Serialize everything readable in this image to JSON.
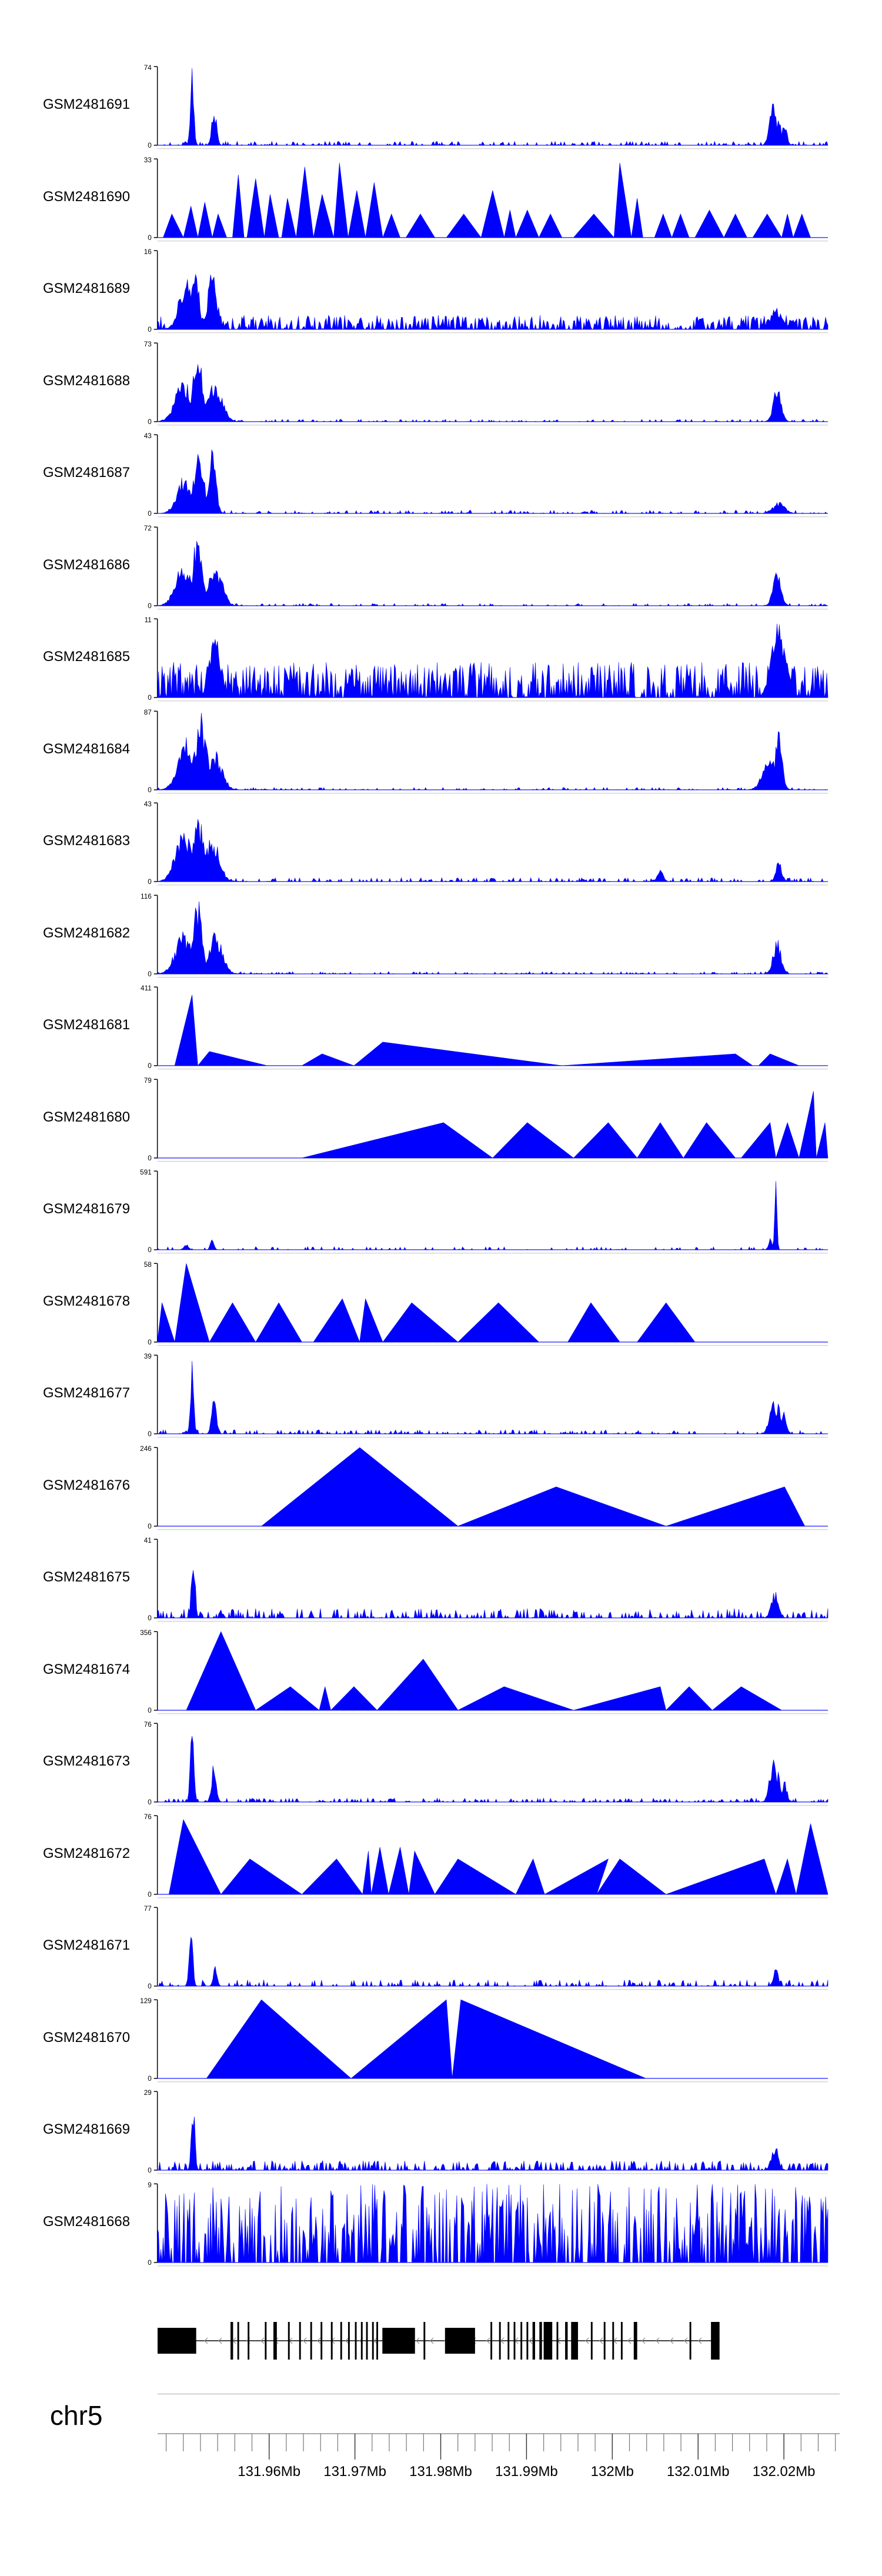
{
  "region": {
    "chromosome": "chr5",
    "start_mb": 131.947,
    "end_mb": 132.0265
  },
  "colors": {
    "signal": "#0000ff",
    "gene": "#000000",
    "axis": "#000000"
  },
  "tracks": [
    {
      "name": "GSM2481691",
      "ymax_label": "74",
      "profile": "spiky_peaks_low"
    },
    {
      "name": "GSM2481690",
      "ymax_label": "33",
      "profile": "triangles_sparse"
    },
    {
      "name": "GSM2481689",
      "ymax_label": "16",
      "profile": "dense_noise_peaks"
    },
    {
      "name": "GSM2481688",
      "ymax_label": "73",
      "profile": "broad_peaks"
    },
    {
      "name": "GSM2481687",
      "ymax_label": "43",
      "profile": "broad_peaks_small_right"
    },
    {
      "name": "GSM2481686",
      "ymax_label": "72",
      "profile": "broad_peaks"
    },
    {
      "name": "GSM2481685",
      "ymax_label": "11",
      "profile": "dense_noise_high"
    },
    {
      "name": "GSM2481684",
      "ymax_label": "87",
      "profile": "broad_peaks_strong_right"
    },
    {
      "name": "GSM2481683",
      "ymax_label": "43",
      "profile": "broad_peaks_mid"
    },
    {
      "name": "GSM2481682",
      "ymax_label": "116",
      "profile": "broad_peaks"
    },
    {
      "name": "GSM2481681",
      "ymax_label": "411",
      "profile": "triangles_wide_a"
    },
    {
      "name": "GSM2481680",
      "ymax_label": "79",
      "profile": "triangles_right"
    },
    {
      "name": "GSM2481679",
      "ymax_label": "591",
      "profile": "spike_right_sparse"
    },
    {
      "name": "GSM2481678",
      "ymax_label": "58",
      "profile": "triangles_many"
    },
    {
      "name": "GSM2481677",
      "ymax_label": "39",
      "profile": "spiky_peaks_low"
    },
    {
      "name": "GSM2481676",
      "ymax_label": "246",
      "profile": "triangles_big"
    },
    {
      "name": "GSM2481675",
      "ymax_label": "41",
      "profile": "spiky_noise"
    },
    {
      "name": "GSM2481674",
      "ymax_label": "356",
      "profile": "triangles_mixed"
    },
    {
      "name": "GSM2481673",
      "ymax_label": "76",
      "profile": "spiky_peaks_low"
    },
    {
      "name": "GSM2481672",
      "ymax_label": "76",
      "profile": "triangles_dense"
    },
    {
      "name": "GSM2481671",
      "ymax_label": "77",
      "profile": "spiky_noise_sparse"
    },
    {
      "name": "GSM2481670",
      "ymax_label": "129",
      "profile": "triangles_few"
    },
    {
      "name": "GSM2481669",
      "ymax_label": "29",
      "profile": "spiky_noise"
    },
    {
      "name": "GSM2481668",
      "ymax_label": "9",
      "profile": "dense_comb"
    }
  ],
  "axis": {
    "ticks": [
      {
        "mb": 131.96,
        "label": "131.96Mb"
      },
      {
        "mb": 131.97,
        "label": "131.97Mb"
      },
      {
        "mb": 131.98,
        "label": "131.98Mb"
      },
      {
        "mb": 131.99,
        "label": "131.99Mb"
      },
      {
        "mb": 132.0,
        "label": "132Mb"
      },
      {
        "mb": 132.01,
        "label": "132.01Mb"
      },
      {
        "mb": 132.02,
        "label": "132.02Mb"
      }
    ],
    "minor_step_mb": 0.002
  },
  "gene_model": {
    "strand": "-",
    "start_mb": 131.947,
    "end_mb": 132.0125,
    "exons": [
      [
        131.947,
        131.9515
      ],
      [
        131.9555,
        131.9558
      ],
      [
        131.9563,
        131.9565
      ],
      [
        131.9575,
        131.9577
      ],
      [
        131.9595,
        131.9597
      ],
      [
        131.9605,
        131.9609
      ],
      [
        131.9622,
        131.9624
      ],
      [
        131.9635,
        131.9637
      ],
      [
        131.9648,
        131.965
      ],
      [
        131.966,
        131.9662
      ],
      [
        131.9672,
        131.9674
      ],
      [
        131.9683,
        131.9685
      ],
      [
        131.9692,
        131.9694
      ],
      [
        131.97,
        131.9702
      ],
      [
        131.9707,
        131.9709
      ],
      [
        131.9713,
        131.9715
      ],
      [
        131.972,
        131.9722
      ],
      [
        131.9725,
        131.9727
      ],
      [
        131.9732,
        131.977
      ],
      [
        131.978,
        131.9782
      ],
      [
        131.9805,
        131.984
      ],
      [
        131.9858,
        131.986
      ],
      [
        131.9868,
        131.987
      ],
      [
        131.9878,
        131.988
      ],
      [
        131.9885,
        131.9887
      ],
      [
        131.9893,
        131.9895
      ],
      [
        131.99,
        131.9902
      ],
      [
        131.9907,
        131.991
      ],
      [
        131.9915,
        131.9918
      ],
      [
        131.992,
        131.993
      ],
      [
        131.9935,
        131.9937
      ],
      [
        131.9945,
        131.9948
      ],
      [
        131.9952,
        131.996
      ],
      [
        131.9975,
        131.9977
      ],
      [
        131.999,
        131.9992
      ],
      [
        132.0,
        132.0002
      ],
      [
        132.001,
        132.0012
      ],
      [
        132.0025,
        132.0029
      ],
      [
        132.009,
        132.0092
      ],
      [
        132.0115,
        132.0125
      ]
    ]
  }
}
